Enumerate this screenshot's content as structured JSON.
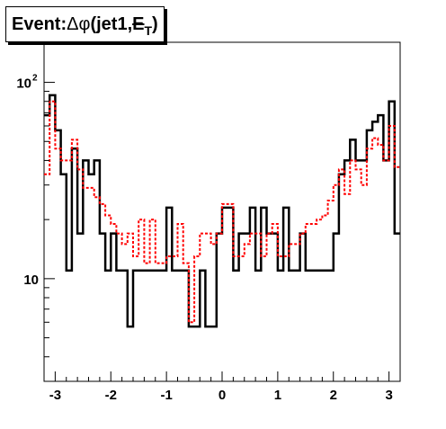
{
  "chart_data": {
    "type": "step",
    "title": {
      "prefix": "Event: ",
      "symbol_delta": "Δ",
      "symbol_phi": "φ",
      "args": "(jet1,",
      "met": "E",
      "met_sub": "T",
      "close": ")"
    },
    "xlabel": "",
    "ylabel": "",
    "xlim": [
      -3.2,
      3.2
    ],
    "ylim": [
      3,
      160
    ],
    "yscale": "log",
    "x_ticks": [
      "-3",
      "-2",
      "-1",
      "0",
      "1",
      "2",
      "3"
    ],
    "y_ticks": [
      {
        "value": 10,
        "label": "10"
      },
      {
        "value": 100,
        "label": "10",
        "exp": "2"
      }
    ],
    "grid": false,
    "bin_edges": [
      -3.2,
      -3.1,
      -3.0,
      -2.9,
      -2.8,
      -2.7,
      -2.6,
      -2.5,
      -2.4,
      -2.3,
      -2.2,
      -2.1,
      -2.0,
      -1.9,
      -1.8,
      -1.7,
      -1.6,
      -1.5,
      -1.4,
      -1.3,
      -1.2,
      -1.1,
      -1.0,
      -0.9,
      -0.8,
      -0.7,
      -0.6,
      -0.5,
      -0.4,
      -0.3,
      -0.2,
      -0.1,
      0.0,
      0.1,
      0.2,
      0.3,
      0.4,
      0.5,
      0.6,
      0.7,
      0.8,
      0.9,
      1.0,
      1.1,
      1.2,
      1.3,
      1.4,
      1.5,
      1.6,
      1.7,
      1.8,
      1.9,
      2.0,
      2.1,
      2.2,
      2.3,
      2.4,
      2.5,
      2.6,
      2.7,
      2.8,
      2.9,
      3.0,
      3.1,
      3.2
    ],
    "series": [
      {
        "style": "solid",
        "color": "#000000",
        "values": [
          68,
          86,
          57,
          34,
          11,
          46,
          17,
          40,
          34,
          40,
          17,
          11,
          17,
          11,
          11,
          5.7,
          11,
          11,
          11,
          11,
          11,
          11,
          23,
          11,
          11,
          11,
          5.7,
          5.7,
          11,
          5.7,
          5.7,
          17,
          23,
          23,
          11,
          17,
          17,
          23,
          11,
          23,
          17,
          17,
          11,
          23,
          11,
          11,
          17,
          11,
          11,
          11,
          11,
          11,
          17,
          34,
          40,
          51,
          40,
          40,
          57,
          63,
          68,
          40,
          80,
          17
        ]
      },
      {
        "style": "dashed",
        "color": "#ff0000",
        "values": [
          34,
          80,
          46,
          40,
          40,
          51,
          36,
          29,
          29,
          26,
          24,
          21,
          19,
          17,
          15,
          17,
          13,
          20,
          12,
          20,
          12,
          12,
          13,
          13,
          19,
          12,
          6,
          13,
          17,
          17,
          15,
          17,
          24,
          24,
          13,
          13,
          15,
          17,
          17,
          13,
          17,
          19,
          13,
          13,
          15,
          15,
          17,
          19,
          19,
          20,
          21,
          25,
          30,
          36,
          27,
          40,
          36,
          30,
          46,
          52,
          48,
          40,
          60,
          37
        ]
      }
    ]
  }
}
